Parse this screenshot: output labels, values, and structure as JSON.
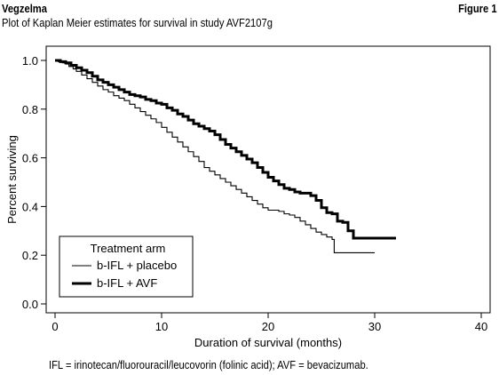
{
  "header": {
    "brand": "Vegzelma",
    "figure_label": "Figure 1",
    "title": "Plot of Kaplan Meier estimates for survival in study AVF2107g"
  },
  "footnote": "IFL = irinotecan/fluorouracil/leucovorin (folinic acid); AVF = bevacizumab.",
  "chart_data": {
    "type": "line",
    "step": true,
    "xlabel": "Duration of survival (months)",
    "ylabel": "Percent surviving",
    "xlim": [
      0,
      40
    ],
    "ylim": [
      0,
      1.0
    ],
    "x_ticks": [
      0,
      10,
      20,
      30,
      40
    ],
    "y_ticks": [
      0.0,
      0.2,
      0.4,
      0.6,
      0.8,
      1.0
    ],
    "x_tick_labels": [
      "0",
      "10",
      "20",
      "30",
      "40"
    ],
    "y_tick_labels": [
      "0.0",
      "0.2",
      "0.4",
      "0.6",
      "0.8",
      "1.0"
    ],
    "grid": false,
    "legend": {
      "title": "Treatment arm",
      "placement": "bottom-left"
    },
    "series": [
      {
        "name": "b-IFL + placebo",
        "line_width": "thin",
        "color": "#000000",
        "points": [
          [
            0,
            1.0
          ],
          [
            0.3,
            0.995
          ],
          [
            0.7,
            0.99
          ],
          [
            1.0,
            0.985
          ],
          [
            1.3,
            0.975
          ],
          [
            1.7,
            0.965
          ],
          [
            2.0,
            0.955
          ],
          [
            2.5,
            0.94
          ],
          [
            3.0,
            0.925
          ],
          [
            3.5,
            0.91
          ],
          [
            4.0,
            0.895
          ],
          [
            4.5,
            0.88
          ],
          [
            5.0,
            0.87
          ],
          [
            5.5,
            0.855
          ],
          [
            6.0,
            0.845
          ],
          [
            6.5,
            0.835
          ],
          [
            7.0,
            0.82
          ],
          [
            7.5,
            0.805
          ],
          [
            8.0,
            0.79
          ],
          [
            8.5,
            0.775
          ],
          [
            9.0,
            0.76
          ],
          [
            9.5,
            0.745
          ],
          [
            10.0,
            0.725
          ],
          [
            10.5,
            0.705
          ],
          [
            11.0,
            0.685
          ],
          [
            11.5,
            0.665
          ],
          [
            12.0,
            0.645
          ],
          [
            12.5,
            0.625
          ],
          [
            13.0,
            0.605
          ],
          [
            13.5,
            0.585
          ],
          [
            14.0,
            0.56
          ],
          [
            14.5,
            0.545
          ],
          [
            15.0,
            0.53
          ],
          [
            15.5,
            0.515
          ],
          [
            16.0,
            0.5
          ],
          [
            16.5,
            0.485
          ],
          [
            17.0,
            0.47
          ],
          [
            17.5,
            0.455
          ],
          [
            18.0,
            0.44
          ],
          [
            18.5,
            0.425
          ],
          [
            19.0,
            0.41
          ],
          [
            19.5,
            0.395
          ],
          [
            20.0,
            0.385
          ],
          [
            21.0,
            0.38
          ],
          [
            21.5,
            0.37
          ],
          [
            22.0,
            0.365
          ],
          [
            22.5,
            0.355
          ],
          [
            23.0,
            0.34
          ],
          [
            23.5,
            0.325
          ],
          [
            24.0,
            0.31
          ],
          [
            24.5,
            0.295
          ],
          [
            25.0,
            0.285
          ],
          [
            25.5,
            0.275
          ],
          [
            26.0,
            0.265
          ],
          [
            26.2,
            0.21
          ],
          [
            30.0,
            0.21
          ]
        ]
      },
      {
        "name": "b-IFL + AVF",
        "line_width": "thick",
        "color": "#000000",
        "points": [
          [
            0,
            1.0
          ],
          [
            0.5,
            0.995
          ],
          [
            1.0,
            0.99
          ],
          [
            1.5,
            0.98
          ],
          [
            2.0,
            0.97
          ],
          [
            2.5,
            0.96
          ],
          [
            3.0,
            0.95
          ],
          [
            3.5,
            0.935
          ],
          [
            4.0,
            0.92
          ],
          [
            4.5,
            0.91
          ],
          [
            5.0,
            0.9
          ],
          [
            5.5,
            0.89
          ],
          [
            6.0,
            0.88
          ],
          [
            6.5,
            0.87
          ],
          [
            7.0,
            0.86
          ],
          [
            7.5,
            0.855
          ],
          [
            8.0,
            0.85
          ],
          [
            8.5,
            0.84
          ],
          [
            9.0,
            0.835
          ],
          [
            9.5,
            0.825
          ],
          [
            10.0,
            0.82
          ],
          [
            10.5,
            0.805
          ],
          [
            11.0,
            0.795
          ],
          [
            11.5,
            0.78
          ],
          [
            12.0,
            0.77
          ],
          [
            12.5,
            0.755
          ],
          [
            13.0,
            0.74
          ],
          [
            13.5,
            0.73
          ],
          [
            14.0,
            0.72
          ],
          [
            14.5,
            0.71
          ],
          [
            15.0,
            0.695
          ],
          [
            15.5,
            0.675
          ],
          [
            16.0,
            0.655
          ],
          [
            16.5,
            0.64
          ],
          [
            17.0,
            0.625
          ],
          [
            17.5,
            0.61
          ],
          [
            18.0,
            0.595
          ],
          [
            18.5,
            0.58
          ],
          [
            19.0,
            0.56
          ],
          [
            19.5,
            0.54
          ],
          [
            20.0,
            0.52
          ],
          [
            20.5,
            0.505
          ],
          [
            21.0,
            0.49
          ],
          [
            21.5,
            0.475
          ],
          [
            22.0,
            0.47
          ],
          [
            22.5,
            0.46
          ],
          [
            23.0,
            0.455
          ],
          [
            24.0,
            0.445
          ],
          [
            24.5,
            0.425
          ],
          [
            25.0,
            0.395
          ],
          [
            25.5,
            0.375
          ],
          [
            26.0,
            0.37
          ],
          [
            26.5,
            0.34
          ],
          [
            27.0,
            0.335
          ],
          [
            27.5,
            0.3
          ],
          [
            28.0,
            0.27
          ],
          [
            32.0,
            0.27
          ]
        ]
      }
    ]
  }
}
